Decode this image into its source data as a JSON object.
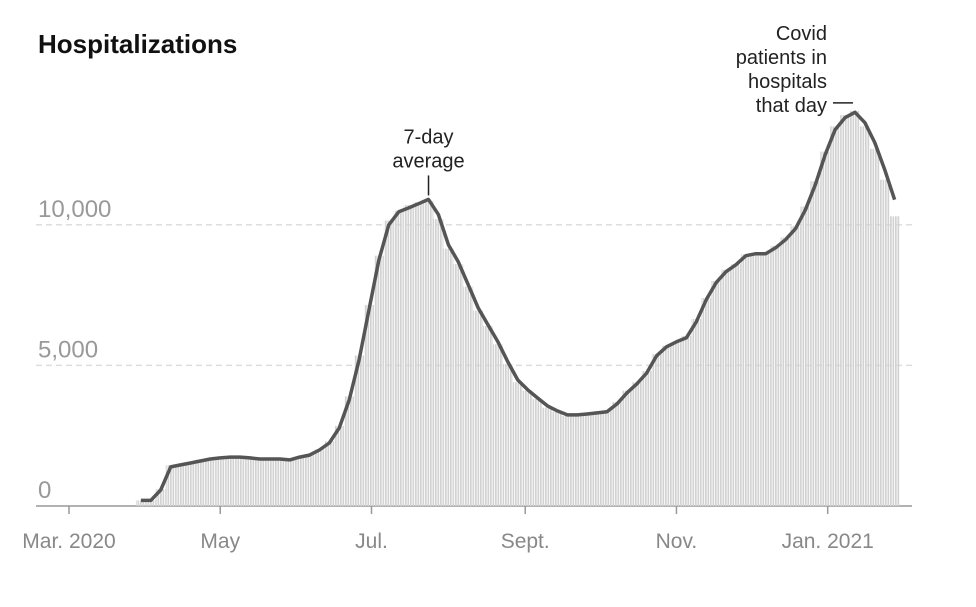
{
  "chart_data": {
    "type": "bar-line",
    "title": "Hospitalizations",
    "x": [
      "2020-03-30",
      "2020-04-03",
      "2020-04-07",
      "2020-04-11",
      "2020-04-15",
      "2020-04-19",
      "2020-04-23",
      "2020-04-27",
      "2020-05-01",
      "2020-05-05",
      "2020-05-09",
      "2020-05-13",
      "2020-05-17",
      "2020-05-21",
      "2020-05-25",
      "2020-05-29",
      "2020-06-02",
      "2020-06-06",
      "2020-06-10",
      "2020-06-14",
      "2020-06-18",
      "2020-06-22",
      "2020-06-26",
      "2020-06-30",
      "2020-07-04",
      "2020-07-08",
      "2020-07-12",
      "2020-07-16",
      "2020-07-20",
      "2020-07-24",
      "2020-07-28",
      "2020-08-01",
      "2020-08-05",
      "2020-08-09",
      "2020-08-13",
      "2020-08-17",
      "2020-08-21",
      "2020-08-25",
      "2020-08-29",
      "2020-09-02",
      "2020-09-06",
      "2020-09-10",
      "2020-09-14",
      "2020-09-18",
      "2020-09-22",
      "2020-09-26",
      "2020-09-30",
      "2020-10-04",
      "2020-10-08",
      "2020-10-12",
      "2020-10-16",
      "2020-10-20",
      "2020-10-24",
      "2020-10-28",
      "2020-11-01",
      "2020-11-05",
      "2020-11-09",
      "2020-11-13",
      "2020-11-17",
      "2020-11-21",
      "2020-11-25",
      "2020-11-29",
      "2020-12-03",
      "2020-12-07",
      "2020-12-11",
      "2020-12-15",
      "2020-12-19",
      "2020-12-23",
      "2020-12-27",
      "2020-12-31",
      "2021-01-04",
      "2021-01-08",
      "2021-01-12",
      "2021-01-16",
      "2021-01-20",
      "2021-01-24",
      "2021-01-28"
    ],
    "series": [
      {
        "name": "Covid patients in hospitals that day",
        "color": "#d2d2d2",
        "kind": "bar",
        "values": [
          200,
          210,
          600,
          1450,
          1480,
          1500,
          1650,
          1700,
          1720,
          1760,
          1730,
          1700,
          1690,
          1650,
          1690,
          1620,
          1760,
          1830,
          2010,
          2300,
          2850,
          3900,
          5350,
          7150,
          8900,
          10150,
          10500,
          10700,
          10800,
          10850,
          10200,
          9150,
          8600,
          7800,
          6950,
          6400,
          5750,
          5050,
          4400,
          4100,
          3800,
          3500,
          3350,
          3200,
          3250,
          3300,
          3300,
          3400,
          3700,
          4100,
          4400,
          4800,
          5400,
          5700,
          5850,
          6050,
          6650,
          7400,
          8000,
          8400,
          8600,
          8950,
          9000,
          9000,
          9250,
          9550,
          9950,
          10650,
          11550,
          12600,
          13500,
          13900,
          14050,
          13500,
          12700,
          11600,
          10300
        ]
      },
      {
        "name": "7-day average",
        "color": "#555555",
        "kind": "line",
        "values": [
          200,
          200,
          570,
          1390,
          1460,
          1530,
          1600,
          1670,
          1710,
          1740,
          1740,
          1710,
          1670,
          1670,
          1670,
          1640,
          1740,
          1810,
          1990,
          2240,
          2780,
          3770,
          5200,
          6980,
          8750,
          10000,
          10460,
          10600,
          10750,
          10900,
          10360,
          9290,
          8680,
          7870,
          7050,
          6440,
          5840,
          5120,
          4480,
          4130,
          3840,
          3560,
          3380,
          3240,
          3240,
          3270,
          3310,
          3350,
          3630,
          4020,
          4340,
          4730,
          5340,
          5660,
          5840,
          5980,
          6550,
          7330,
          7940,
          8330,
          8580,
          8900,
          8970,
          8970,
          9180,
          9470,
          9860,
          10530,
          11420,
          12490,
          13380,
          13810,
          14000,
          13630,
          12920,
          11960,
          10890
        ]
      }
    ],
    "annotations": [
      {
        "lines": [
          "7-day",
          "average"
        ],
        "series": 1,
        "index": 29
      },
      {
        "lines": [
          "Covid",
          "patients in",
          "hospitals",
          "that day"
        ],
        "series": 0,
        "index": 72
      }
    ],
    "xlim": [
      "2020-03-01",
      "2021-02-04"
    ],
    "xticks": [
      {
        "value": "2020-03-01",
        "label": "Mar. 2020"
      },
      {
        "value": "2020-05-01",
        "label": "May"
      },
      {
        "value": "2020-07-01",
        "label": "Jul."
      },
      {
        "value": "2020-09-01",
        "label": "Sept."
      },
      {
        "value": "2020-11-01",
        "label": "Nov."
      },
      {
        "value": "2021-01-01",
        "label": "Jan. 2021"
      }
    ],
    "ylim": [
      0,
      16000
    ],
    "yticks": [
      0,
      {
        "value": 5000,
        "label": "5,000"
      },
      {
        "value": 10000,
        "label": "10,000"
      }
    ],
    "grid": true
  }
}
